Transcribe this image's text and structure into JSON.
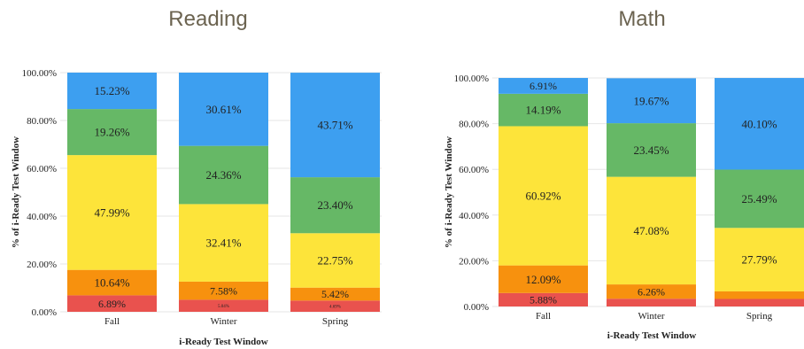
{
  "colors": {
    "level1": "#e9524e",
    "level2": "#f7910e",
    "level3": "#fde43a",
    "level4": "#66b866",
    "level5": "#3d9ff0",
    "gridline": "#e6e6e6",
    "title": "#6b6350"
  },
  "chart_data": [
    {
      "type": "bar",
      "stacked": true,
      "title": "Reading",
      "xlabel": "i-Ready Test Window",
      "ylabel": "% of i-Ready Test Window",
      "ylim": [
        0,
        100
      ],
      "yticks": [
        "0.00%",
        "20.00%",
        "40.00%",
        "60.00%",
        "80.00%",
        "100.00%"
      ],
      "categories": [
        "Fall",
        "Winter",
        "Spring"
      ],
      "series": [
        {
          "values": [
            6.89,
            5.04,
            4.69
          ],
          "labels": [
            "6.89%",
            "5.04%",
            "4.69%"
          ],
          "color": "#e9524e"
        },
        {
          "values": [
            10.64,
            7.58,
            5.42
          ],
          "labels": [
            "10.64%",
            "7.58%",
            "5.42%"
          ],
          "color": "#f7910e"
        },
        {
          "values": [
            47.99,
            32.41,
            22.75
          ],
          "labels": [
            "47.99%",
            "32.41%",
            "22.75%"
          ],
          "color": "#fde43a"
        },
        {
          "values": [
            19.26,
            24.36,
            23.4
          ],
          "labels": [
            "19.26%",
            "24.36%",
            "23.40%"
          ],
          "color": "#66b866"
        },
        {
          "values": [
            15.23,
            30.61,
            43.71
          ],
          "labels": [
            "15.23%",
            "30.61%",
            "43.71%"
          ],
          "color": "#3d9ff0"
        }
      ]
    },
    {
      "type": "bar",
      "stacked": true,
      "title": "Math",
      "xlabel": "i-Ready Test Window",
      "ylabel": "% of i-Ready Test Window",
      "ylim": [
        0,
        100
      ],
      "yticks": [
        "0.00%",
        "20.00%",
        "40.00%",
        "60.00%",
        "80.00%",
        "100.00%"
      ],
      "categories": [
        "Fall",
        "Winter",
        "Spring"
      ],
      "series": [
        {
          "values": [
            5.88,
            3.4,
            3.3
          ],
          "labels": [
            "5.88%",
            "",
            ""
          ],
          "color": "#e9524e"
        },
        {
          "values": [
            12.09,
            6.26,
            3.3
          ],
          "labels": [
            "12.09%",
            "6.26%",
            ""
          ],
          "color": "#f7910e"
        },
        {
          "values": [
            60.92,
            47.08,
            27.79
          ],
          "labels": [
            "60.92%",
            "47.08%",
            "27.79%"
          ],
          "color": "#fde43a"
        },
        {
          "values": [
            14.19,
            23.45,
            25.49
          ],
          "labels": [
            "14.19%",
            "23.45%",
            "25.49%"
          ],
          "color": "#66b866"
        },
        {
          "values": [
            6.91,
            19.67,
            40.1
          ],
          "labels": [
            "6.91%",
            "19.67%",
            "40.10%"
          ],
          "color": "#3d9ff0"
        }
      ]
    }
  ]
}
